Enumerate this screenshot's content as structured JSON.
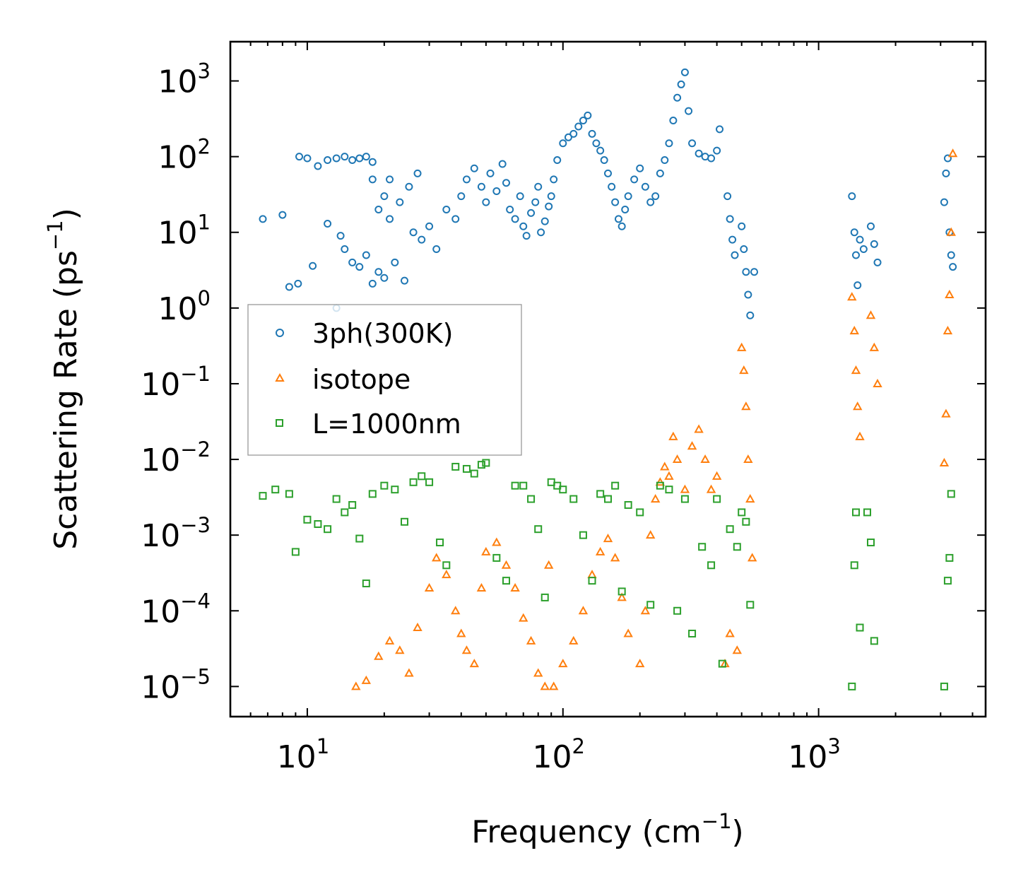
{
  "chart_data": {
    "type": "scatter",
    "title": "",
    "xlabel": "Frequency (cm",
    "xlabel_sup": "−1",
    "xlabel_end": ")",
    "ylabel": "Scattering Rate (ps",
    "ylabel_sup": "−1",
    "ylabel_end": ")",
    "xscale": "log",
    "yscale": "log",
    "xlim": [
      5,
      4500
    ],
    "ylim": [
      4e-06,
      3300
    ],
    "grid": false,
    "legend_position": "center-left",
    "x_ticks": [
      {
        "value": 10,
        "base": "10",
        "exp": "1"
      },
      {
        "value": 100,
        "base": "10",
        "exp": "2"
      },
      {
        "value": 1000,
        "base": "10",
        "exp": "3"
      }
    ],
    "y_ticks": [
      {
        "value": 1e-05,
        "base": "10",
        "exp": "−5"
      },
      {
        "value": 0.0001,
        "base": "10",
        "exp": "−4"
      },
      {
        "value": 0.001,
        "base": "10",
        "exp": "−3"
      },
      {
        "value": 0.01,
        "base": "10",
        "exp": "−2"
      },
      {
        "value": 0.1,
        "base": "10",
        "exp": "−1"
      },
      {
        "value": 1,
        "base": "10",
        "exp": "0"
      },
      {
        "value": 10,
        "base": "10",
        "exp": "1"
      },
      {
        "value": 100,
        "base": "10",
        "exp": "2"
      },
      {
        "value": 1000,
        "base": "10",
        "exp": "3"
      }
    ],
    "series": [
      {
        "name": "3ph(300K)",
        "marker": "circle",
        "color": "#1f77b4",
        "points": [
          [
            6.7,
            15
          ],
          [
            8,
            17
          ],
          [
            8.5,
            1.9
          ],
          [
            9.2,
            2.1
          ],
          [
            10.5,
            3.6
          ],
          [
            9.3,
            100
          ],
          [
            10,
            95
          ],
          [
            11,
            75
          ],
          [
            12,
            90
          ],
          [
            13,
            95
          ],
          [
            14,
            100
          ],
          [
            15,
            90
          ],
          [
            16,
            95
          ],
          [
            17,
            100
          ],
          [
            18,
            85
          ],
          [
            12,
            13
          ],
          [
            13,
            1.0
          ],
          [
            13.5,
            9
          ],
          [
            14,
            6
          ],
          [
            15,
            4
          ],
          [
            16,
            3.5
          ],
          [
            17,
            5
          ],
          [
            18,
            2.1
          ],
          [
            19,
            3
          ],
          [
            20,
            2.5
          ],
          [
            22,
            4
          ],
          [
            24,
            2.3
          ],
          [
            21,
            50
          ],
          [
            20,
            30
          ],
          [
            25,
            40
          ],
          [
            27,
            60
          ],
          [
            18,
            50
          ],
          [
            19,
            20
          ],
          [
            21,
            15
          ],
          [
            23,
            25
          ],
          [
            26,
            10
          ],
          [
            28,
            8
          ],
          [
            30,
            12
          ],
          [
            32,
            6
          ],
          [
            35,
            20
          ],
          [
            38,
            15
          ],
          [
            40,
            30
          ],
          [
            42,
            50
          ],
          [
            45,
            70
          ],
          [
            48,
            40
          ],
          [
            50,
            25
          ],
          [
            52,
            60
          ],
          [
            55,
            35
          ],
          [
            58,
            80
          ],
          [
            60,
            45
          ],
          [
            62,
            20
          ],
          [
            65,
            15
          ],
          [
            68,
            30
          ],
          [
            70,
            12
          ],
          [
            72,
            9
          ],
          [
            75,
            18
          ],
          [
            78,
            25
          ],
          [
            80,
            40
          ],
          [
            82,
            10
          ],
          [
            85,
            14
          ],
          [
            88,
            22
          ],
          [
            90,
            30
          ],
          [
            92,
            50
          ],
          [
            95,
            90
          ],
          [
            100,
            150
          ],
          [
            105,
            180
          ],
          [
            110,
            200
          ],
          [
            115,
            250
          ],
          [
            120,
            300
          ],
          [
            125,
            350
          ],
          [
            130,
            200
          ],
          [
            135,
            150
          ],
          [
            140,
            120
          ],
          [
            145,
            90
          ],
          [
            150,
            60
          ],
          [
            155,
            40
          ],
          [
            160,
            25
          ],
          [
            165,
            15
          ],
          [
            170,
            12
          ],
          [
            175,
            20
          ],
          [
            180,
            30
          ],
          [
            190,
            50
          ],
          [
            200,
            70
          ],
          [
            210,
            40
          ],
          [
            220,
            25
          ],
          [
            230,
            30
          ],
          [
            240,
            60
          ],
          [
            250,
            90
          ],
          [
            260,
            150
          ],
          [
            270,
            300
          ],
          [
            280,
            600
          ],
          [
            290,
            900
          ],
          [
            300,
            1300
          ],
          [
            310,
            400
          ],
          [
            320,
            150
          ],
          [
            340,
            110
          ],
          [
            360,
            100
          ],
          [
            380,
            95
          ],
          [
            400,
            120
          ],
          [
            410,
            230
          ],
          [
            440,
            30
          ],
          [
            450,
            15
          ],
          [
            460,
            8
          ],
          [
            470,
            5
          ],
          [
            500,
            12
          ],
          [
            510,
            6
          ],
          [
            520,
            3
          ],
          [
            530,
            1.5
          ],
          [
            540,
            0.8
          ],
          [
            560,
            3
          ],
          [
            1350,
            30
          ],
          [
            1380,
            10
          ],
          [
            1400,
            5
          ],
          [
            1420,
            2
          ],
          [
            1450,
            8
          ],
          [
            1500,
            6
          ],
          [
            1600,
            12
          ],
          [
            1650,
            7
          ],
          [
            1700,
            4
          ],
          [
            3100,
            25
          ],
          [
            3150,
            60
          ],
          [
            3200,
            95
          ],
          [
            3250,
            10
          ],
          [
            3300,
            5
          ],
          [
            3350,
            3.5
          ]
        ]
      },
      {
        "name": "isotope",
        "marker": "triangle",
        "color": "#ff7f0e",
        "points": [
          [
            15.5,
            1e-05
          ],
          [
            17,
            1.2e-05
          ],
          [
            19,
            2.5e-05
          ],
          [
            21,
            4e-05
          ],
          [
            23,
            3e-05
          ],
          [
            25,
            1.5e-05
          ],
          [
            27,
            6e-05
          ],
          [
            30,
            0.0002
          ],
          [
            32,
            0.0005
          ],
          [
            35,
            0.0003
          ],
          [
            38,
            0.0001
          ],
          [
            40,
            5e-05
          ],
          [
            42,
            3e-05
          ],
          [
            45,
            2e-05
          ],
          [
            48,
            0.0002
          ],
          [
            50,
            0.0006
          ],
          [
            55,
            0.0008
          ],
          [
            60,
            0.0004
          ],
          [
            65,
            0.0002
          ],
          [
            70,
            8e-05
          ],
          [
            75,
            4e-05
          ],
          [
            80,
            1.5e-05
          ],
          [
            85,
            1e-05
          ],
          [
            88,
            0.0004
          ],
          [
            92,
            1e-05
          ],
          [
            100,
            2e-05
          ],
          [
            110,
            4e-05
          ],
          [
            120,
            0.0001
          ],
          [
            130,
            0.0003
          ],
          [
            140,
            0.0006
          ],
          [
            150,
            0.0009
          ],
          [
            160,
            0.0005
          ],
          [
            170,
            0.00015
          ],
          [
            180,
            5e-05
          ],
          [
            200,
            2e-05
          ],
          [
            210,
            0.0001
          ],
          [
            220,
            0.001
          ],
          [
            230,
            0.003
          ],
          [
            240,
            0.005
          ],
          [
            250,
            0.008
          ],
          [
            260,
            0.006
          ],
          [
            270,
            0.02
          ],
          [
            280,
            0.01
          ],
          [
            300,
            0.004
          ],
          [
            320,
            0.015
          ],
          [
            340,
            0.025
          ],
          [
            360,
            0.01
          ],
          [
            380,
            0.004
          ],
          [
            400,
            0.006
          ],
          [
            430,
            2e-05
          ],
          [
            450,
            5e-05
          ],
          [
            480,
            3e-05
          ],
          [
            500,
            0.3
          ],
          [
            510,
            0.15
          ],
          [
            520,
            0.05
          ],
          [
            530,
            0.01
          ],
          [
            540,
            0.003
          ],
          [
            550,
            0.0005
          ],
          [
            1350,
            1.4
          ],
          [
            1380,
            0.5
          ],
          [
            1400,
            0.15
          ],
          [
            1420,
            0.05
          ],
          [
            1450,
            0.02
          ],
          [
            1600,
            0.8
          ],
          [
            1650,
            0.3
          ],
          [
            1700,
            0.1
          ],
          [
            3100,
            0.009
          ],
          [
            3150,
            0.04
          ],
          [
            3200,
            0.5
          ],
          [
            3250,
            1.5
          ],
          [
            3300,
            10
          ],
          [
            3350,
            110
          ]
        ]
      },
      {
        "name": "L=1000nm",
        "marker": "square",
        "color": "#2ca02c",
        "points": [
          [
            6.7,
            0.0033
          ],
          [
            7.5,
            0.004
          ],
          [
            8.5,
            0.0035
          ],
          [
            9,
            0.0006
          ],
          [
            10,
            0.0016
          ],
          [
            11,
            0.0014
          ],
          [
            12,
            0.0012
          ],
          [
            13,
            0.003
          ],
          [
            14,
            0.002
          ],
          [
            15,
            0.0025
          ],
          [
            16,
            0.0009
          ],
          [
            17,
            0.00023
          ],
          [
            18,
            0.0035
          ],
          [
            20,
            0.0045
          ],
          [
            22,
            0.004
          ],
          [
            24,
            0.0015
          ],
          [
            26,
            0.005
          ],
          [
            28,
            0.006
          ],
          [
            30,
            0.005
          ],
          [
            33,
            0.0008
          ],
          [
            35,
            0.0004
          ],
          [
            38,
            0.008
          ],
          [
            42,
            0.0075
          ],
          [
            45,
            0.0065
          ],
          [
            48,
            0.0085
          ],
          [
            50,
            0.009
          ],
          [
            55,
            0.0005
          ],
          [
            60,
            0.00025
          ],
          [
            65,
            0.0045
          ],
          [
            70,
            0.0045
          ],
          [
            75,
            0.003
          ],
          [
            80,
            0.0012
          ],
          [
            85,
            0.00015
          ],
          [
            90,
            0.005
          ],
          [
            95,
            0.0045
          ],
          [
            100,
            0.004
          ],
          [
            110,
            0.003
          ],
          [
            120,
            0.001
          ],
          [
            130,
            0.00025
          ],
          [
            140,
            0.0035
          ],
          [
            150,
            0.003
          ],
          [
            160,
            0.0045
          ],
          [
            170,
            0.00018
          ],
          [
            180,
            0.0025
          ],
          [
            200,
            0.002
          ],
          [
            220,
            0.00012
          ],
          [
            240,
            0.0045
          ],
          [
            260,
            0.004
          ],
          [
            280,
            0.0001
          ],
          [
            300,
            0.003
          ],
          [
            320,
            5e-05
          ],
          [
            350,
            0.0007
          ],
          [
            380,
            0.0004
          ],
          [
            400,
            0.003
          ],
          [
            420,
            2e-05
          ],
          [
            450,
            0.0012
          ],
          [
            480,
            0.0007
          ],
          [
            500,
            0.002
          ],
          [
            520,
            0.0015
          ],
          [
            540,
            0.00012
          ],
          [
            1350,
            1e-05
          ],
          [
            1380,
            0.0004
          ],
          [
            1400,
            0.002
          ],
          [
            1450,
            6e-05
          ],
          [
            1550,
            0.002
          ],
          [
            1600,
            0.0008
          ],
          [
            1650,
            4e-05
          ],
          [
            3100,
            1e-05
          ],
          [
            3200,
            0.00025
          ],
          [
            3250,
            0.0005
          ],
          [
            3300,
            0.0035
          ]
        ]
      }
    ]
  }
}
